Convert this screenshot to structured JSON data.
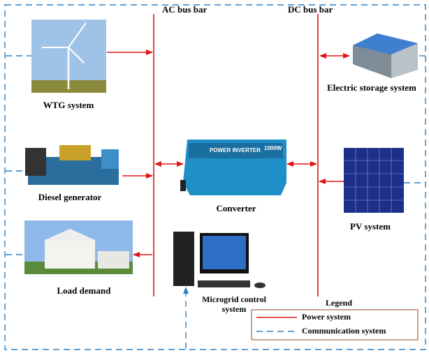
{
  "buses": {
    "ac": "AC bus bar",
    "dc": "DC bus bar"
  },
  "nodes": [
    {
      "label": "WTG system"
    },
    {
      "label": "Electric storage system"
    },
    {
      "label": "Diesel generator"
    },
    {
      "label": "Converter",
      "image_text": [
        "POWER INVERTER",
        "1000W"
      ]
    },
    {
      "label": "PV system"
    },
    {
      "label": "Load demand"
    },
    {
      "label_lines": [
        "Microgrid control",
        "system"
      ]
    }
  ],
  "legend": {
    "title": "Legend",
    "items": [
      "Power system",
      "Communication system"
    ]
  }
}
